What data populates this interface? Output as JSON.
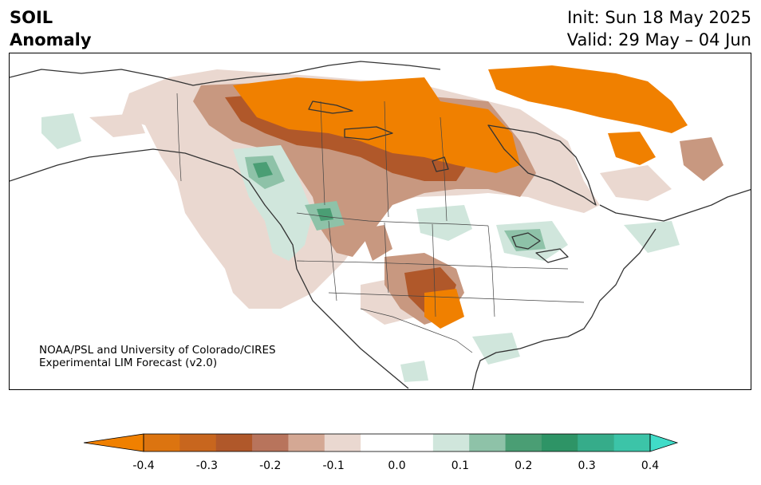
{
  "header": {
    "title_line1": "SOIL",
    "title_line2": "Anomaly",
    "init": "Init: Sun 18 May 2025",
    "valid": "Valid: 29 May – 04 Jun"
  },
  "map": {
    "region": "North America",
    "variable": "Soil moisture anomaly",
    "credit_line1": "NOAA/PSL and University of Colorado/CIRES",
    "credit_line2": "Experimental LIM Forecast (v2.0)"
  },
  "colorbar": {
    "ticks": [
      "-0.4",
      "-0.3",
      "-0.2",
      "-0.1",
      "0.0",
      "0.1",
      "0.2",
      "0.3",
      "0.4"
    ],
    "colors": [
      "#f08000",
      "#dc7410",
      "#c8661e",
      "#b0582a",
      "#b8745c",
      "#d4a894",
      "#ead8d0",
      "#ffffff",
      "#ffffff",
      "#d0e6dc",
      "#8ec2a8",
      "#4a9e74",
      "#2e9466",
      "#36ac8a",
      "#3cc4a8",
      "#40dcc8"
    ],
    "extend": "both"
  }
}
